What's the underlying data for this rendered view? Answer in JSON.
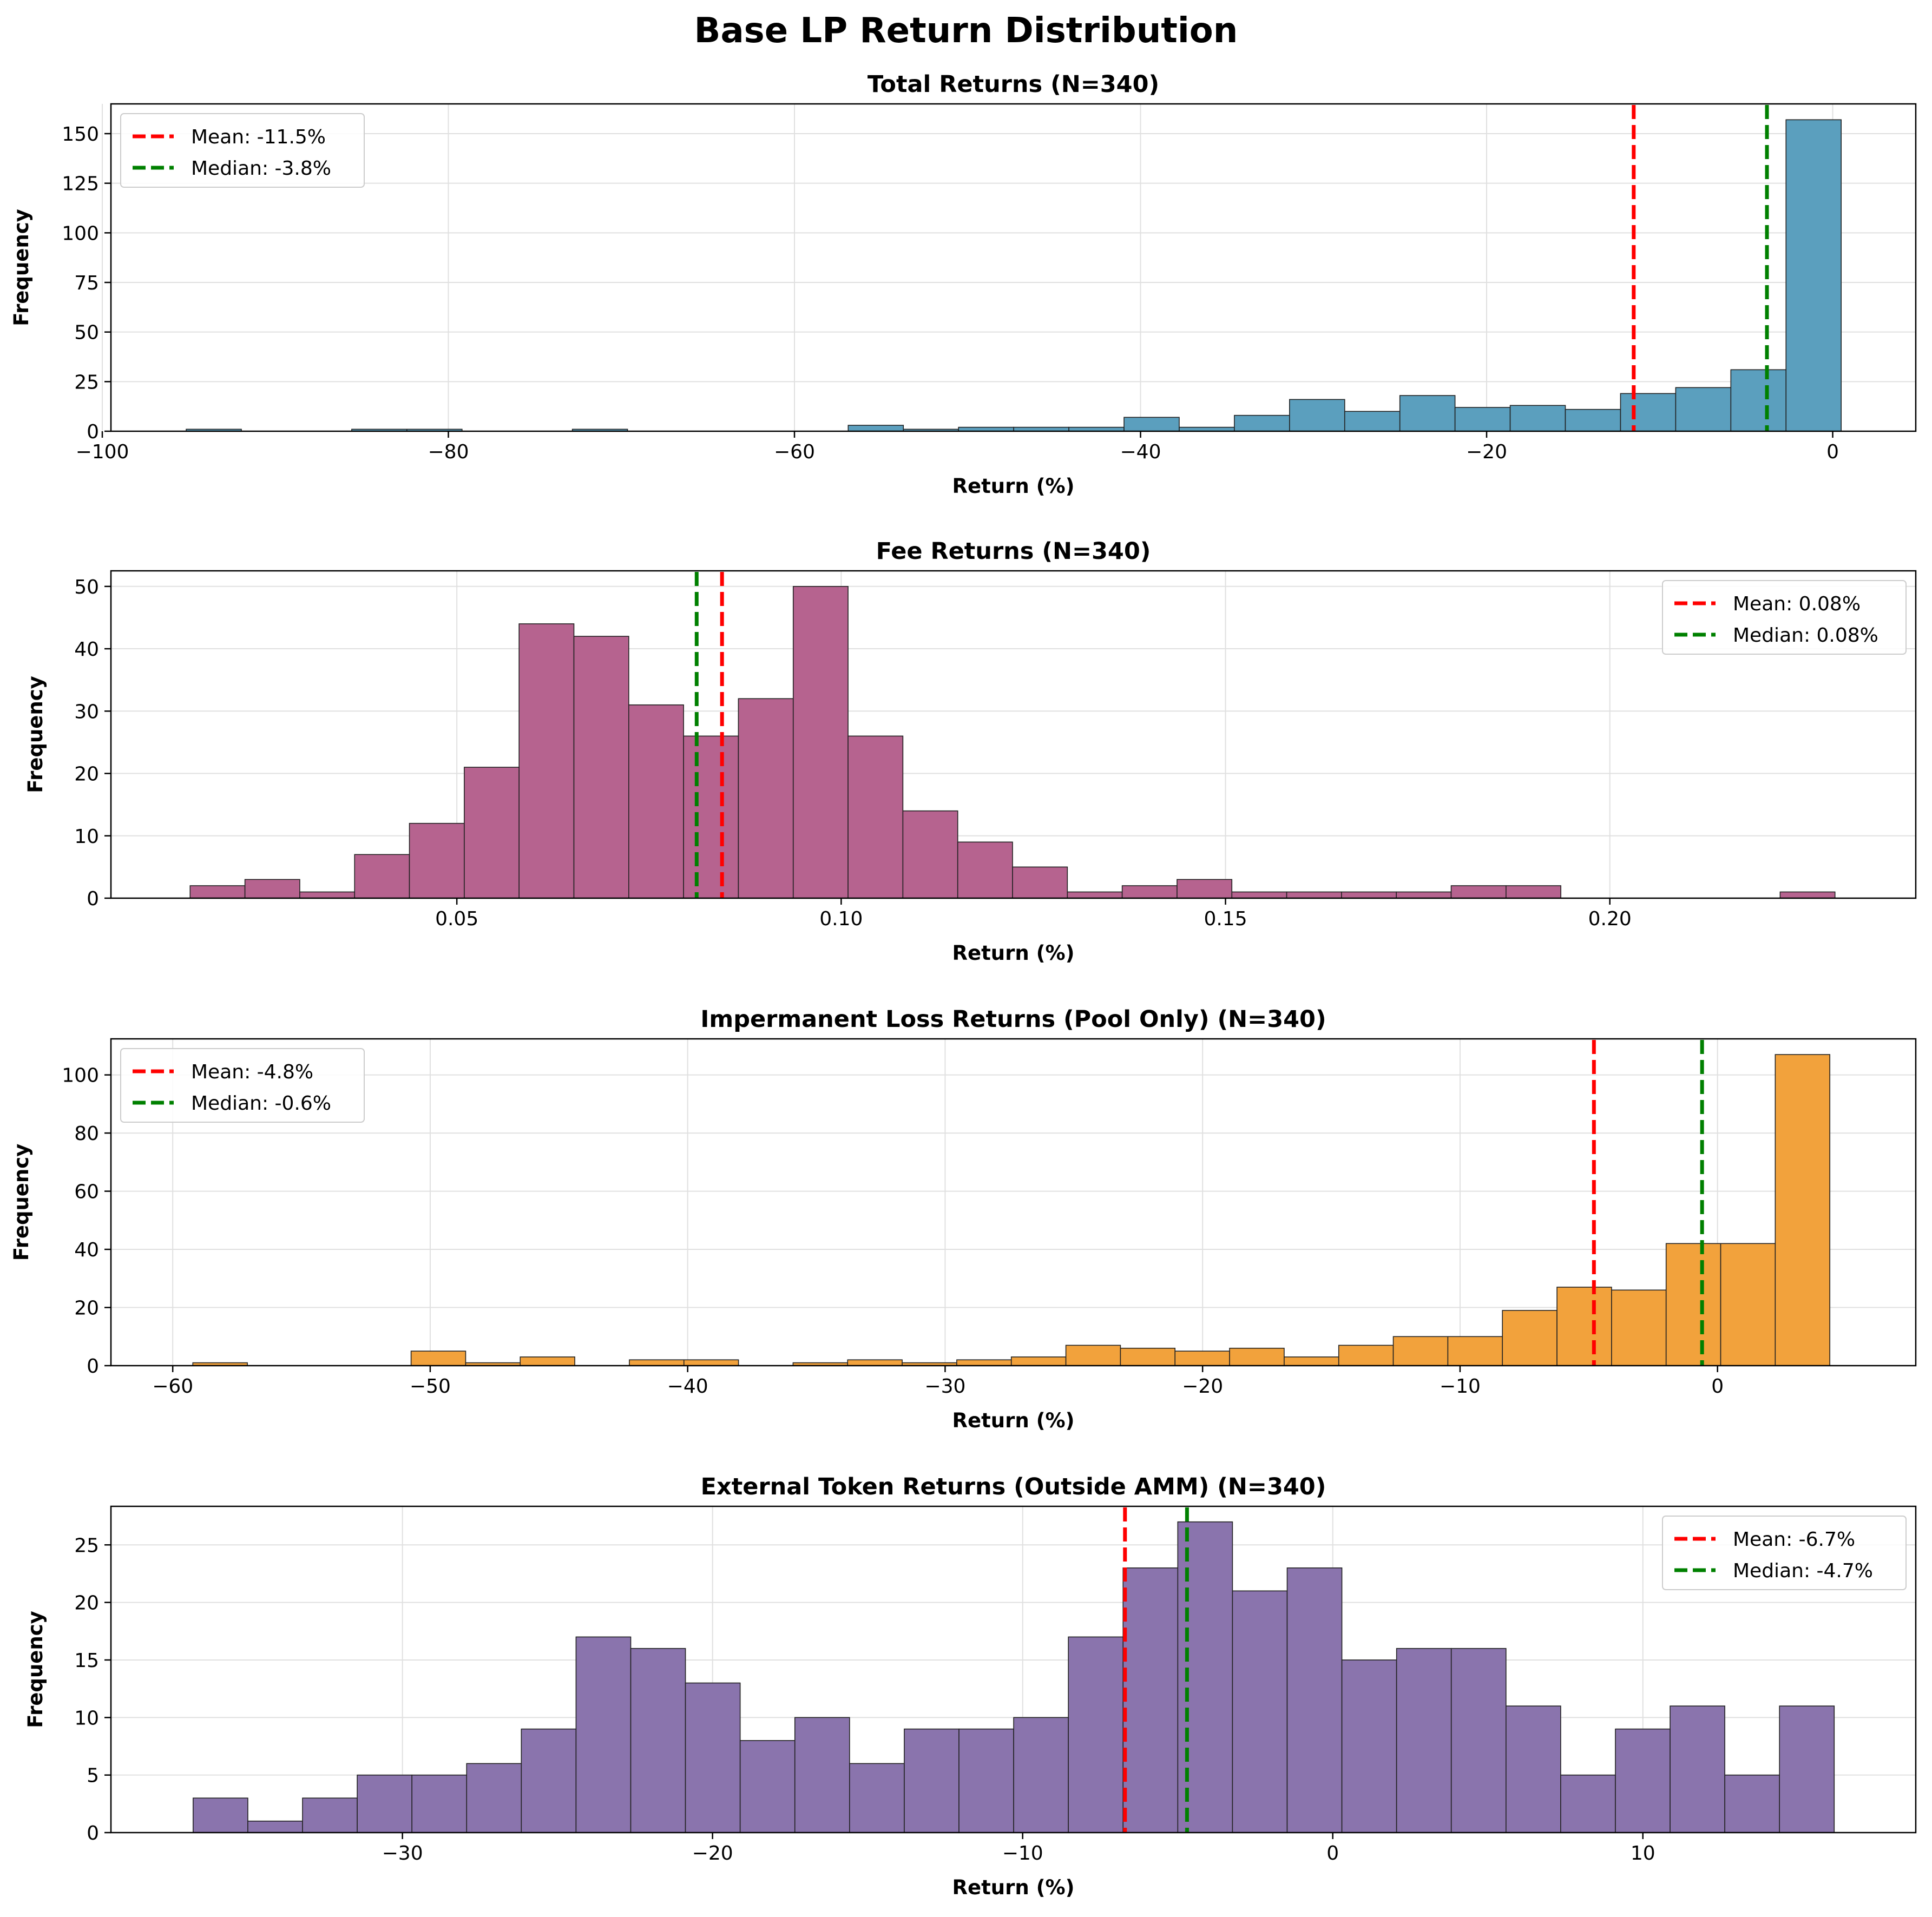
{
  "suptitle": "Base LP Return Distribution",
  "colors": {
    "total": "#5b9fbe",
    "fee": "#b6638f",
    "il": "#f2a23c",
    "external": "#8a74ad",
    "mean_line": "#ff0000",
    "median_line": "#008000",
    "grid": "#e0e0e0"
  },
  "chart_data": [
    {
      "type": "bar",
      "title": "Total Returns (N=340)",
      "xlabel": "Return (%)",
      "ylabel": "Frequency",
      "xlim": [
        -99.5,
        4.8
      ],
      "ylim": [
        0,
        165
      ],
      "xticks": [
        -100,
        -80,
        -60,
        -40,
        -20,
        0
      ],
      "xticklabels": [
        "−100",
        "−80",
        "−60",
        "−40",
        "−20",
        "0"
      ],
      "yticks": [
        0,
        25,
        50,
        75,
        100,
        125,
        150
      ],
      "yticklabels": [
        "0",
        "25",
        "50",
        "75",
        "100",
        "125",
        "150"
      ],
      "grid": true,
      "bin_start": -95.15,
      "bin_width": 3.188,
      "counts": [
        1,
        0,
        0,
        1,
        1,
        0,
        0,
        1,
        0,
        0,
        0,
        0,
        3,
        1,
        2,
        2,
        2,
        7,
        2,
        8,
        16,
        10,
        18,
        12,
        13,
        11,
        19,
        22,
        31,
        157
      ],
      "mean": -11.5,
      "median": -3.8,
      "legend": [
        "Mean: -11.5%",
        "Median: -3.8%"
      ],
      "legend_loc": "upper left"
    },
    {
      "type": "bar",
      "title": "Fee Returns (N=340)",
      "xlabel": "Return (%)",
      "ylabel": "Frequency",
      "xlim": [
        0.005,
        0.2398
      ],
      "ylim": [
        0,
        52.5
      ],
      "xticks": [
        0.05,
        0.1,
        0.15,
        0.2
      ],
      "xticklabels": [
        "0.05",
        "0.10",
        "0.15",
        "0.20"
      ],
      "yticks": [
        0,
        10,
        20,
        30,
        40,
        50
      ],
      "yticklabels": [
        "0",
        "10",
        "20",
        "30",
        "40",
        "50"
      ],
      "grid": true,
      "bin_start": 0.0153,
      "bin_width": 0.007133,
      "counts": [
        2,
        3,
        1,
        7,
        12,
        21,
        44,
        42,
        31,
        26,
        32,
        50,
        26,
        14,
        9,
        5,
        1,
        2,
        3,
        1,
        1,
        1,
        1,
        2,
        2,
        0,
        0,
        0,
        0,
        1
      ],
      "mean": 0.0845,
      "median": 0.0812,
      "legend": [
        "Mean: 0.08%",
        "Median: 0.08%"
      ],
      "legend_loc": "upper right"
    },
    {
      "type": "bar",
      "title": "Impermanent Loss Returns (Pool Only) (N=340)",
      "xlabel": "Return (%)",
      "ylabel": "Frequency",
      "xlim": [
        -62.4,
        7.7
      ],
      "ylim": [
        0,
        112.4
      ],
      "xticks": [
        -60,
        -50,
        -40,
        -30,
        -20,
        -10,
        0
      ],
      "xticklabels": [
        "−60",
        "−50",
        "−40",
        "−30",
        "−20",
        "−10",
        "0"
      ],
      "yticks": [
        0,
        20,
        40,
        60,
        80,
        100
      ],
      "yticklabels": [
        "0",
        "20",
        "40",
        "60",
        "80",
        "100"
      ],
      "grid": true,
      "bin_start": -59.22,
      "bin_width": 2.1194,
      "counts": [
        1,
        0,
        0,
        0,
        5,
        1,
        3,
        0,
        2,
        2,
        0,
        1,
        2,
        1,
        2,
        3,
        7,
        6,
        5,
        6,
        3,
        7,
        10,
        10,
        19,
        27,
        26,
        42,
        42,
        107
      ],
      "mean": -4.8,
      "median": -0.6,
      "legend": [
        "Mean: -4.8%",
        "Median: -0.6%"
      ],
      "legend_loc": "upper left"
    },
    {
      "type": "bar",
      "title": "External Token Returns (Outside AMM) (N=340)",
      "xlabel": "Return (%)",
      "ylabel": "Frequency",
      "xlim": [
        -39.4,
        18.8
      ],
      "ylim": [
        0,
        28.35
      ],
      "xticks": [
        -30,
        -20,
        -10,
        0,
        10
      ],
      "xticklabels": [
        "−30",
        "−20",
        "−10",
        "0",
        "10"
      ],
      "yticks": [
        0,
        5,
        10,
        15,
        20,
        25
      ],
      "yticklabels": [
        "0",
        "5",
        "10",
        "15",
        "20",
        "25"
      ],
      "grid": true,
      "bin_start": -36.75,
      "bin_width": 1.764,
      "counts": [
        3,
        1,
        3,
        5,
        5,
        6,
        9,
        17,
        16,
        13,
        8,
        10,
        6,
        9,
        9,
        10,
        17,
        23,
        27,
        21,
        23,
        15,
        16,
        16,
        11,
        5,
        9,
        11,
        5,
        11
      ],
      "mean": -6.7,
      "median": -4.7,
      "legend": [
        "Mean: -6.7%",
        "Median: -4.7%"
      ],
      "legend_loc": "upper right"
    }
  ]
}
